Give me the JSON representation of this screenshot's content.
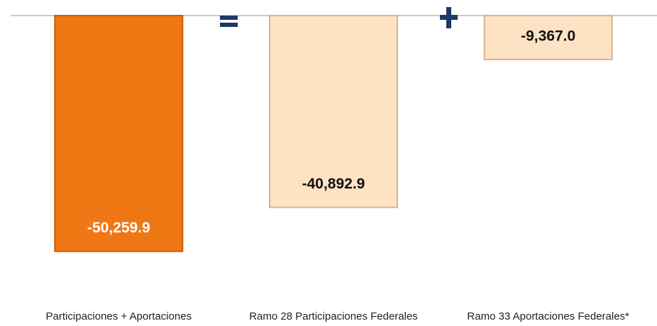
{
  "chart_data": {
    "type": "bar",
    "categories": [
      "Participaciones + Aportaciones",
      "Ramo 28 Participaciones Federales",
      "Ramo 33 Aportaciones Federales*"
    ],
    "values": [
      -50259.9,
      -40892.9,
      -9367.0
    ],
    "value_labels": [
      "-50,259.9",
      "-40,892.9",
      "-9,367.0"
    ],
    "colors": [
      "#f07814",
      "#fde2c4",
      "#fde2c4"
    ],
    "label_colors": [
      "#ffffff",
      "#111111",
      "#111111"
    ],
    "ylim": [
      -55000,
      0
    ]
  }
}
